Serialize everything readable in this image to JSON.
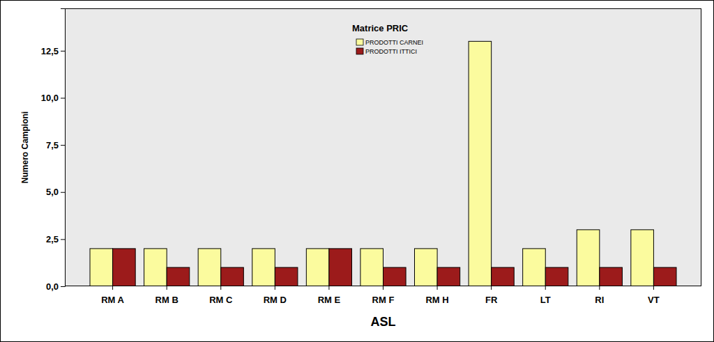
{
  "chart_data": {
    "type": "bar",
    "title": "Matrice PRIC",
    "x_label": "ASL",
    "y_label": "Numero Campioni",
    "categories": [
      "RM A",
      "RM B",
      "RM C",
      "RM D",
      "RM E",
      "RM F",
      "RM H",
      "FR",
      "LT",
      "RI",
      "VT"
    ],
    "series": [
      {
        "name": "PRODOTTI CARNEI",
        "color": "#fbfb9e",
        "values": [
          2,
          2,
          2,
          2,
          2,
          2,
          2,
          13,
          2,
          3,
          3
        ]
      },
      {
        "name": "PRODOTTI ITTICI",
        "color": "#9c1b1b",
        "values": [
          2,
          1,
          1,
          1,
          2,
          1,
          1,
          1,
          1,
          1,
          1
        ]
      }
    ],
    "ylim": [
      0,
      14.75
    ],
    "yticks": [
      {
        "value": 0,
        "label": "0,0"
      },
      {
        "value": 2.5,
        "label": "2,5"
      },
      {
        "value": 5,
        "label": "5,0"
      },
      {
        "value": 7.5,
        "label": "7,5"
      },
      {
        "value": 10,
        "label": "10,0"
      },
      {
        "value": 12.5,
        "label": "12,5"
      }
    ],
    "grid": false,
    "legend": "top"
  }
}
